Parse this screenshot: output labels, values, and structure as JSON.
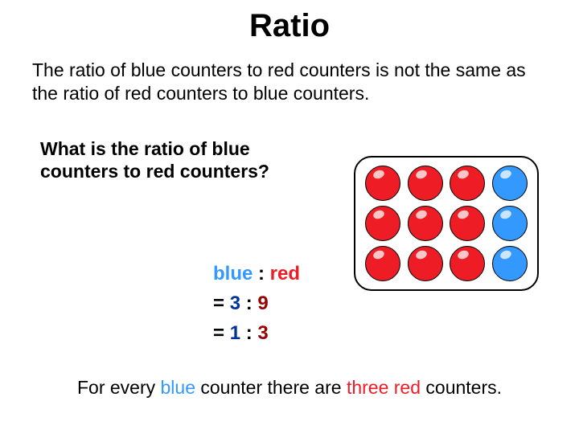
{
  "title": "Ratio",
  "intro": "The ratio of blue counters to red counters is not the same as the ratio of red counters to blue counters.",
  "question": "What is the ratio of blue counters to red counters?",
  "colors": {
    "red": "#ee1c25",
    "blue": "#3399ff",
    "navy": "#003399",
    "darkred": "#990000",
    "black": "#000000"
  },
  "grid": {
    "rows": 3,
    "cols": 4,
    "cells": [
      "red",
      "red",
      "red",
      "blue",
      "red",
      "red",
      "red",
      "blue",
      "red",
      "red",
      "red",
      "blue"
    ]
  },
  "ratio": {
    "label_left": "blue",
    "label_sep": " : ",
    "label_right": "red",
    "line2_eq": "= ",
    "line2_a": "3",
    "line2_sep": " : ",
    "line2_b": "9",
    "line3_eq": "= ",
    "line3_a": "1",
    "line3_sep": " : ",
    "line3_b": "3"
  },
  "conclusion": {
    "p1": "For every ",
    "p2": "blue ",
    "p3": "counter there are ",
    "p4": "three red ",
    "p5": "counters."
  }
}
